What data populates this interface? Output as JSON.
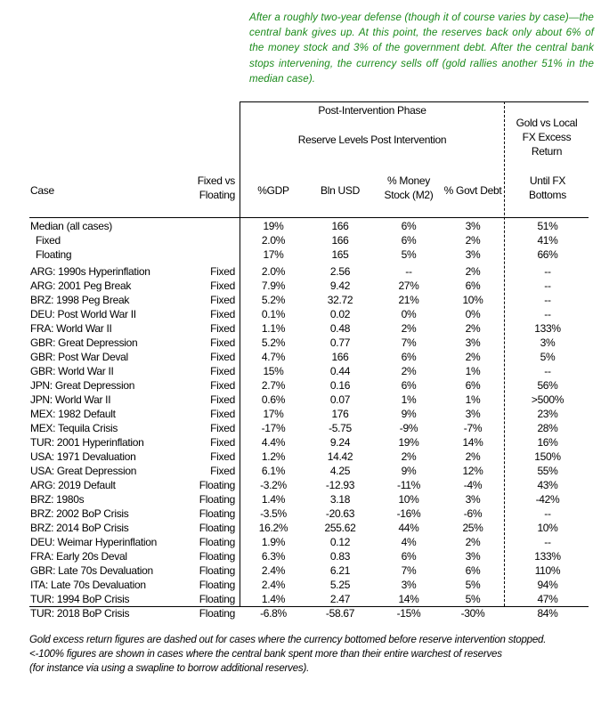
{
  "callout": "After a roughly two-year defense (though it of course varies by case)—the central bank gives up. At this point, the reserves back only about 6% of the money stock and 3% of the government debt. After the central bank stops intervening, the currency sells off (gold rallies another 51% in the median case).",
  "header": {
    "phase": "Post-Intervention Phase",
    "reserve_group": "Reserve Levels Post Intervention",
    "gold_group_line1": "Gold vs Local",
    "gold_group_line2": "FX Excess",
    "gold_group_line3": "Return",
    "case": "Case",
    "fixed_line1": "Fixed vs",
    "fixed_line2": "Floating",
    "gdp": "%GDP",
    "bln": "Bln USD",
    "m2_line1": "% Money",
    "m2_line2": "Stock (M2)",
    "debt": "% Govt Debt",
    "gold_line1": "Until FX",
    "gold_line2": "Bottoms"
  },
  "summary_rows": [
    {
      "case": "Median (all cases)",
      "fix": "",
      "gdp": "19%",
      "bln": "166",
      "m2": "6%",
      "debt": "3%",
      "gold": "51%"
    },
    {
      "case": "Fixed",
      "fix": "",
      "gdp": "2.0%",
      "bln": "166",
      "m2": "6%",
      "debt": "2%",
      "gold": "41%"
    },
    {
      "case": "Floating",
      "fix": "",
      "gdp": "17%",
      "bln": "165",
      "m2": "5%",
      "debt": "3%",
      "gold": "66%"
    }
  ],
  "rows": [
    {
      "case": "ARG: 1990s Hyperinflation",
      "fix": "Fixed",
      "gdp": "2.0%",
      "bln": "2.56",
      "m2": "--",
      "debt": "2%",
      "gold": "--"
    },
    {
      "case": "ARG: 2001 Peg Break",
      "fix": "Fixed",
      "gdp": "7.9%",
      "bln": "9.42",
      "m2": "27%",
      "debt": "6%",
      "gold": "--"
    },
    {
      "case": "BRZ: 1998 Peg Break",
      "fix": "Fixed",
      "gdp": "5.2%",
      "bln": "32.72",
      "m2": "21%",
      "debt": "10%",
      "gold": "--"
    },
    {
      "case": "DEU: Post World War II",
      "fix": "Fixed",
      "gdp": "0.1%",
      "bln": "0.02",
      "m2": "0%",
      "debt": "0%",
      "gold": "--"
    },
    {
      "case": "FRA: World War II",
      "fix": "Fixed",
      "gdp": "1.1%",
      "bln": "0.48",
      "m2": "2%",
      "debt": "2%",
      "gold": "133%"
    },
    {
      "case": "GBR: Great Depression",
      "fix": "Fixed",
      "gdp": "5.2%",
      "bln": "0.77",
      "m2": "7%",
      "debt": "3%",
      "gold": "3%"
    },
    {
      "case": "GBR: Post War Deval",
      "fix": "Fixed",
      "gdp": "4.7%",
      "bln": "166",
      "m2": "6%",
      "debt": "2%",
      "gold": "5%"
    },
    {
      "case": "GBR: World War II",
      "fix": "Fixed",
      "gdp": "15%",
      "bln": "0.44",
      "m2": "2%",
      "debt": "1%",
      "gold": "--"
    },
    {
      "case": "JPN: Great Depression",
      "fix": "Fixed",
      "gdp": "2.7%",
      "bln": "0.16",
      "m2": "6%",
      "debt": "6%",
      "gold": "56%"
    },
    {
      "case": "JPN: World War II",
      "fix": "Fixed",
      "gdp": "0.6%",
      "bln": "0.07",
      "m2": "1%",
      "debt": "1%",
      "gold": ">500%"
    },
    {
      "case": "MEX: 1982 Default",
      "fix": "Fixed",
      "gdp": "17%",
      "bln": "176",
      "m2": "9%",
      "debt": "3%",
      "gold": "23%"
    },
    {
      "case": "MEX: Tequila Crisis",
      "fix": "Fixed",
      "gdp": "-17%",
      "bln": "-5.75",
      "m2": "-9%",
      "debt": "-7%",
      "gold": "28%"
    },
    {
      "case": "TUR: 2001 Hyperinflation",
      "fix": "Fixed",
      "gdp": "4.4%",
      "bln": "9.24",
      "m2": "19%",
      "debt": "14%",
      "gold": "16%"
    },
    {
      "case": "USA: 1971 Devaluation",
      "fix": "Fixed",
      "gdp": "1.2%",
      "bln": "14.42",
      "m2": "2%",
      "debt": "2%",
      "gold": "150%"
    },
    {
      "case": "USA: Great Depression",
      "fix": "Fixed",
      "gdp": "6.1%",
      "bln": "4.25",
      "m2": "9%",
      "debt": "12%",
      "gold": "55%"
    },
    {
      "case": "ARG: 2019 Default",
      "fix": "Floating",
      "gdp": "-3.2%",
      "bln": "-12.93",
      "m2": "-11%",
      "debt": "-4%",
      "gold": "43%"
    },
    {
      "case": "BRZ: 1980s",
      "fix": "Floating",
      "gdp": "1.4%",
      "bln": "3.18",
      "m2": "10%",
      "debt": "3%",
      "gold": "-42%"
    },
    {
      "case": "BRZ: 2002 BoP Crisis",
      "fix": "Floating",
      "gdp": "-3.5%",
      "bln": "-20.63",
      "m2": "-16%",
      "debt": "-6%",
      "gold": "--"
    },
    {
      "case": "BRZ: 2014 BoP Crisis",
      "fix": "Floating",
      "gdp": "16.2%",
      "bln": "255.62",
      "m2": "44%",
      "debt": "25%",
      "gold": "10%"
    },
    {
      "case": "DEU: Weimar Hyperinflation",
      "fix": "Floating",
      "gdp": "1.9%",
      "bln": "0.12",
      "m2": "4%",
      "debt": "2%",
      "gold": "--"
    },
    {
      "case": "FRA: Early 20s Deval",
      "fix": "Floating",
      "gdp": "6.3%",
      "bln": "0.83",
      "m2": "6%",
      "debt": "3%",
      "gold": "133%"
    },
    {
      "case": "GBR: Late 70s Devaluation",
      "fix": "Floating",
      "gdp": "2.4%",
      "bln": "6.21",
      "m2": "7%",
      "debt": "6%",
      "gold": "110%"
    },
    {
      "case": "ITA: Late 70s Devaluation",
      "fix": "Floating",
      "gdp": "2.4%",
      "bln": "5.25",
      "m2": "3%",
      "debt": "5%",
      "gold": "94%"
    },
    {
      "case": "TUR: 1994 BoP Crisis",
      "fix": "Floating",
      "gdp": "1.4%",
      "bln": "2.47",
      "m2": "14%",
      "debt": "5%",
      "gold": "47%"
    },
    {
      "case": "TUR: 2018 BoP Crisis",
      "fix": "Floating",
      "gdp": "-6.8%",
      "bln": "-58.67",
      "m2": "-15%",
      "debt": "-30%",
      "gold": "84%"
    }
  ],
  "footnote": [
    "Gold excess return figures are dashed out for cases where the currency bottomed before reserve intervention stopped.",
    "<-100% figures are shown in cases where the central bank spent more than their entire warchest of reserves",
    "(for instance via using a swapline to borrow additional reserves)."
  ]
}
